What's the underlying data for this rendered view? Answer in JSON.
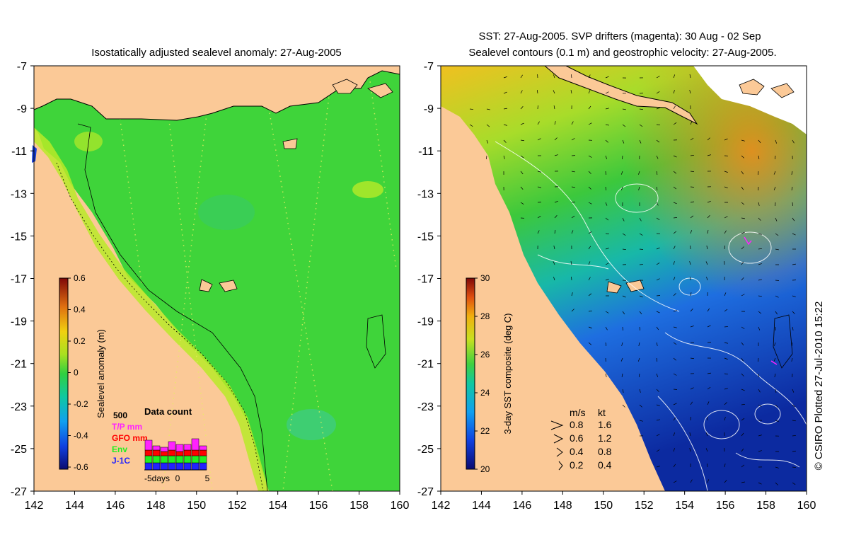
{
  "left_panel": {
    "title": "Isostatically adjusted sealevel anomaly: 27-Aug-2005",
    "y_ticks": [
      "-7",
      "-9",
      "-11",
      "-13",
      "-15",
      "-17",
      "-19",
      "-21",
      "-23",
      "-25",
      "-27"
    ],
    "x_ticks": [
      "142",
      "144",
      "146",
      "148",
      "150",
      "152",
      "154",
      "156",
      "158",
      "160"
    ],
    "colorbar": {
      "label": "Sealevel anomaly (m)",
      "ticks": [
        "0.6",
        "0.4",
        "0.2",
        "0",
        "-0.2",
        "-0.4",
        "-0.6"
      ]
    },
    "inset": {
      "title": "Data count",
      "max_label": "500",
      "legend": [
        {
          "text": "T/P mm",
          "color": "#ff22ff"
        },
        {
          "text": "GFO mm",
          "color": "#ff0000"
        },
        {
          "text": "Env",
          "color": "#22ee22"
        },
        {
          "text": "J-1C",
          "color": "#2222ff"
        }
      ],
      "x_labels": [
        "-5days",
        "0",
        "5"
      ]
    }
  },
  "right_panel": {
    "title_line1": "SST: 27-Aug-2005. SVP drifters (magenta): 30 Aug - 02 Sep",
    "title_line2": "Sealevel contours (0.1 m) and geostrophic velocity: 27-Aug-2005.",
    "y_ticks": [
      "-7",
      "-9",
      "-11",
      "-13",
      "-15",
      "-17",
      "-19",
      "-21",
      "-23",
      "-25",
      "-27"
    ],
    "x_ticks": [
      "142",
      "144",
      "146",
      "148",
      "150",
      "152",
      "154",
      "156",
      "158",
      "160"
    ],
    "colorbar": {
      "label": "3-day SST composite (deg C)",
      "ticks": [
        "30",
        "28",
        "26",
        "24",
        "22",
        "20"
      ]
    },
    "velocity_legend": {
      "header_ms": "m/s",
      "header_kt": "kt",
      "rows": [
        {
          "ms": "0.8",
          "kt": "1.6"
        },
        {
          "ms": "0.6",
          "kt": "1.2"
        },
        {
          "ms": "0.4",
          "kt": "0.8"
        },
        {
          "ms": "0.2",
          "kt": "0.4"
        }
      ]
    }
  },
  "credit": "© CSIRO Plotted 27-Jul-2010 15:22",
  "colors": {
    "land": "#fbc997",
    "sea_green": "#3fd43a",
    "sea_yellow": "#c8ee20",
    "sst_blue": "#1a3fb8",
    "sst_orange": "#f29a1c"
  }
}
